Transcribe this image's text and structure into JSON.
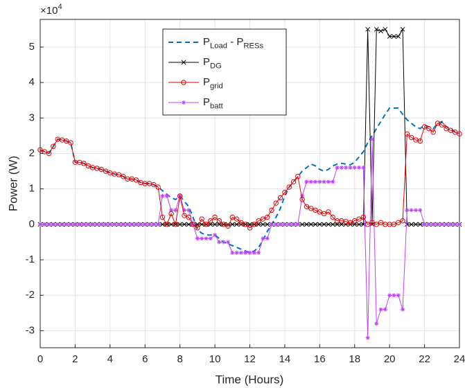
{
  "chart_data": {
    "type": "line",
    "x_label": "Time (Hours)",
    "y_label": "Power (W)",
    "y_exponent": "×10^{4}",
    "xlim": [
      0,
      24
    ],
    "xticks": [
      0,
      2,
      4,
      6,
      8,
      10,
      12,
      14,
      16,
      18,
      20,
      22,
      24
    ],
    "ylim": [
      -3.48,
      5.78
    ],
    "yticks": [
      -3,
      -2,
      -1,
      0,
      1,
      2,
      3,
      4,
      5
    ],
    "grid": true,
    "legend_position": "top",
    "x": [
      0,
      0.25,
      0.5,
      0.75,
      1,
      1.25,
      1.5,
      1.75,
      2,
      2.25,
      2.5,
      2.75,
      3,
      3.25,
      3.5,
      3.75,
      4,
      4.25,
      4.5,
      4.75,
      5,
      5.25,
      5.5,
      5.75,
      6,
      6.25,
      6.5,
      6.75,
      7,
      7.25,
      7.5,
      7.75,
      8,
      8.25,
      8.5,
      8.75,
      9,
      9.25,
      9.5,
      9.75,
      10,
      10.25,
      10.5,
      10.75,
      11,
      11.25,
      11.5,
      11.75,
      12,
      12.25,
      12.5,
      12.75,
      13,
      13.25,
      13.5,
      13.75,
      14,
      14.25,
      14.5,
      14.75,
      15,
      15.25,
      15.5,
      15.75,
      16,
      16.25,
      16.5,
      16.75,
      17,
      17.25,
      17.5,
      17.75,
      18,
      18.25,
      18.5,
      18.75,
      19,
      19.25,
      19.5,
      19.75,
      20,
      20.25,
      20.5,
      20.75,
      21,
      21.25,
      21.5,
      21.75,
      22,
      22.25,
      22.5,
      22.75,
      23,
      23.25,
      23.5,
      23.75,
      24
    ],
    "series": [
      {
        "name": "P_{Load} - P_{RESs}",
        "color": "#0072BD",
        "style": "dashed",
        "marker": "none",
        "values": [
          2.1,
          2.05,
          2.0,
          2.2,
          2.4,
          2.38,
          2.35,
          2.3,
          1.75,
          1.75,
          1.72,
          1.65,
          1.6,
          1.58,
          1.55,
          1.5,
          1.45,
          1.42,
          1.4,
          1.35,
          1.28,
          1.28,
          1.25,
          1.18,
          1.15,
          1.15,
          1.12,
          1.05,
          0.95,
          0.85,
          0.75,
          0.7,
          0.8,
          0.65,
          0.5,
          0.2,
          -0.15,
          -0.25,
          -0.3,
          -0.3,
          -0.3,
          -0.4,
          -0.5,
          -0.55,
          -0.6,
          -0.65,
          -0.7,
          -0.75,
          -0.8,
          -0.75,
          -0.65,
          -0.45,
          -0.2,
          0.0,
          0.2,
          0.45,
          0.8,
          1.05,
          1.2,
          1.35,
          1.5,
          1.6,
          1.7,
          1.65,
          1.55,
          1.5,
          1.55,
          1.65,
          1.7,
          1.72,
          1.7,
          1.68,
          1.75,
          1.9,
          2.05,
          2.3,
          2.5,
          2.7,
          2.9,
          3.1,
          3.28,
          3.28,
          3.28,
          3.1,
          2.95,
          2.85,
          2.75,
          2.7,
          2.8,
          2.75,
          2.7,
          2.85,
          2.9,
          2.75,
          2.7,
          2.6,
          2.55
        ]
      },
      {
        "name": "P_{DG}",
        "color": "#000000",
        "style": "solid",
        "marker": "x",
        "values": [
          0,
          0,
          0,
          0,
          0,
          0,
          0,
          0,
          0,
          0,
          0,
          0,
          0,
          0,
          0,
          0,
          0,
          0,
          0,
          0,
          0,
          0,
          0,
          0,
          0,
          0,
          0,
          0,
          0,
          0,
          0,
          0,
          0,
          0,
          0,
          0,
          0,
          0,
          0,
          0,
          0,
          0,
          0,
          0,
          0,
          0,
          0,
          0,
          0,
          0,
          0,
          0,
          0,
          0,
          0,
          0,
          0,
          0,
          0,
          0,
          0,
          0,
          0,
          0,
          0,
          0,
          0,
          0,
          0,
          0,
          0,
          0,
          0,
          0,
          0,
          5.5,
          0,
          5.5,
          5.45,
          5.5,
          5.3,
          5.3,
          5.3,
          5.5,
          0,
          0,
          0,
          0,
          0,
          0,
          0,
          0,
          0,
          0,
          0,
          0,
          0
        ]
      },
      {
        "name": "P_{grid}",
        "color": "#E00000",
        "style": "solid",
        "marker": "o",
        "values": [
          2.1,
          2.05,
          2.0,
          2.2,
          2.4,
          2.38,
          2.35,
          2.3,
          1.75,
          1.75,
          1.72,
          1.65,
          1.6,
          1.58,
          1.55,
          1.5,
          1.45,
          1.42,
          1.4,
          1.35,
          1.28,
          1.28,
          1.25,
          1.18,
          1.15,
          1.15,
          1.12,
          1.05,
          0.2,
          0.0,
          0.3,
          0.0,
          0.8,
          0.25,
          0.2,
          0.0,
          -0.1,
          0.15,
          0.0,
          0.1,
          0.2,
          0.1,
          0.0,
          -0.05,
          0.2,
          0.15,
          0.05,
          0.0,
          -0.1,
          0.0,
          0.1,
          0.15,
          0.2,
          0.4,
          0.6,
          0.75,
          0.9,
          1.05,
          1.2,
          1.35,
          0.7,
          0.5,
          0.45,
          0.4,
          0.35,
          0.3,
          0.35,
          0.2,
          0.1,
          0.1,
          0.08,
          0.05,
          0.1,
          0.15,
          0.2,
          0.0,
          0.05,
          0.0,
          0.05,
          0.0,
          0.0,
          0.0,
          0.05,
          0.1,
          2.55,
          2.45,
          2.38,
          2.35,
          2.75,
          2.7,
          2.6,
          2.85,
          2.8,
          2.7,
          2.65,
          2.6,
          2.55
        ]
      },
      {
        "name": "P_{batt}",
        "color": "#BF40FF",
        "style": "solid",
        "marker": "*",
        "values": [
          0,
          0,
          0,
          0,
          0,
          0,
          0,
          0,
          0,
          0,
          0,
          0,
          0,
          0,
          0,
          0,
          0,
          0,
          0,
          0,
          0,
          0,
          0,
          0,
          0,
          0,
          0,
          0,
          0.8,
          0.8,
          0.4,
          0.4,
          0.8,
          0.4,
          0.4,
          0,
          -0.4,
          -0.4,
          -0.4,
          -0.4,
          -0.3,
          -0.5,
          -0.5,
          -0.5,
          -0.8,
          -0.8,
          -0.8,
          -0.8,
          -0.8,
          -0.8,
          -0.8,
          -0.4,
          -0.4,
          0,
          0,
          0,
          0,
          0,
          0,
          0,
          0.8,
          1.2,
          1.2,
          1.2,
          1.2,
          1.2,
          1.2,
          1.2,
          1.6,
          1.6,
          1.6,
          1.6,
          1.6,
          1.6,
          1.6,
          -3.2,
          2.4,
          -2.8,
          -2.4,
          -2.4,
          -2.0,
          -2.0,
          -2.0,
          -2.4,
          0.4,
          0.4,
          0.4,
          0.4,
          0,
          0,
          0,
          0,
          0,
          0,
          0,
          0,
          0
        ]
      }
    ]
  }
}
